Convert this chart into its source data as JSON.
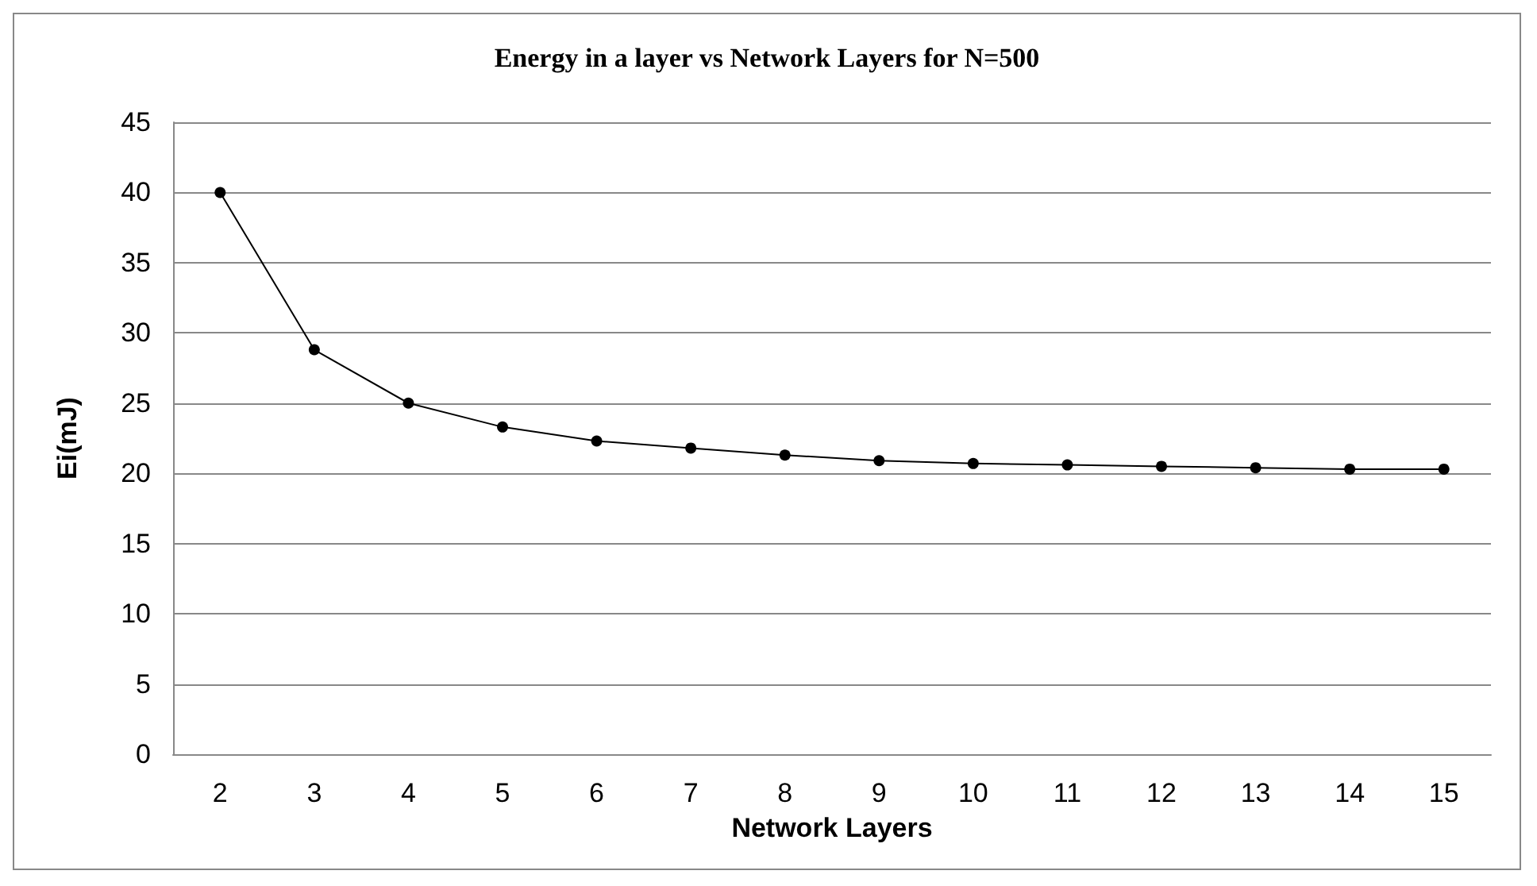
{
  "chart_data": {
    "type": "line",
    "title": "Energy in a layer vs Network Layers for N=500",
    "xlabel": "Network Layers",
    "ylabel": "Ei(mJ)",
    "categories": [
      "2",
      "3",
      "4",
      "5",
      "6",
      "7",
      "8",
      "9",
      "10",
      "11",
      "12",
      "13",
      "14",
      "15"
    ],
    "series": [
      {
        "color": "#000000",
        "values": [
          40,
          28.8,
          25,
          23.3,
          22.3,
          21.8,
          21.3,
          20.9,
          20.7,
          20.6,
          20.5,
          20.4,
          20.3,
          20.3
        ]
      }
    ],
    "ylim": [
      0,
      45
    ],
    "yticks": [
      0,
      5,
      10,
      15,
      20,
      25,
      30,
      35,
      40,
      45
    ],
    "grid": "y",
    "marker": "circle",
    "line_style": "solid"
  }
}
